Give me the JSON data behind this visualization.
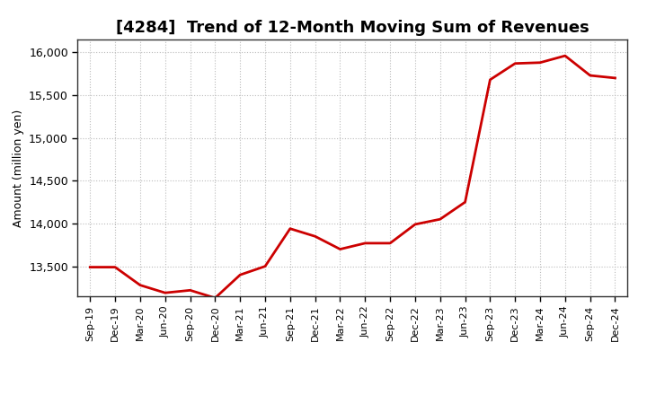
{
  "title": "[4284]  Trend of 12-Month Moving Sum of Revenues",
  "ylabel": "Amount (million yen)",
  "line_color": "#cc0000",
  "background_color": "#ffffff",
  "grid_color": "#bbbbbb",
  "ylim": [
    13150,
    16150
  ],
  "yticks": [
    13500,
    14000,
    14500,
    15000,
    15500,
    16000
  ],
  "x_labels": [
    "Sep-19",
    "Dec-19",
    "Mar-20",
    "Jun-20",
    "Sep-20",
    "Dec-20",
    "Mar-21",
    "Jun-21",
    "Sep-21",
    "Dec-21",
    "Mar-22",
    "Jun-22",
    "Sep-22",
    "Dec-22",
    "Mar-23",
    "Jun-23",
    "Sep-23",
    "Dec-23",
    "Mar-24",
    "Jun-24",
    "Sep-24",
    "Dec-24"
  ],
  "values": [
    13490,
    13490,
    13280,
    13190,
    13220,
    13130,
    13400,
    13500,
    13940,
    13850,
    13700,
    13770,
    13770,
    13990,
    14050,
    14250,
    15680,
    15870,
    15880,
    15960,
    15730,
    15700
  ],
  "title_fontsize": 13,
  "ylabel_fontsize": 9,
  "tick_fontsize": 9,
  "xtick_fontsize": 8
}
